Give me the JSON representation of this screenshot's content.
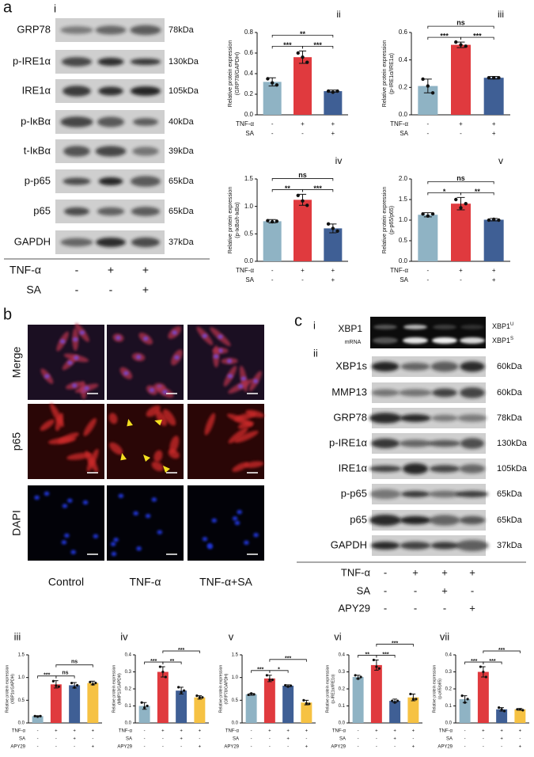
{
  "panel_labels": [
    "a",
    "b",
    "c"
  ],
  "blot_a": {
    "label": "i",
    "rows": [
      {
        "name": "GRP78",
        "size": "78kDa"
      },
      {
        "name": "p-IRE1α",
        "size": "130kDa"
      },
      {
        "name": "IRE1α",
        "size": "105kDa"
      },
      {
        "name": "p-IκBα",
        "size": "40kDa"
      },
      {
        "name": "t-IκBα",
        "size": "39kDa"
      },
      {
        "name": "p-p65",
        "size": "65kDa"
      },
      {
        "name": "p65",
        "size": "65kDa"
      },
      {
        "name": "GAPDH",
        "size": "37kDa"
      }
    ],
    "conditions": [
      {
        "name": "TNF-α",
        "marks": [
          "-",
          "+",
          "+"
        ]
      },
      {
        "name": "SA",
        "marks": [
          "-",
          "-",
          "+"
        ]
      }
    ]
  },
  "micro_b": {
    "rows": [
      "Merge",
      "p65",
      "DAPI"
    ],
    "columns": [
      "Control",
      "TNF-α",
      "TNF-α+SA"
    ]
  },
  "blot_c": {
    "labels": [
      "i",
      "ii"
    ],
    "xbp1": {
      "name": "XBP1",
      "sub": "mRNA",
      "bands": [
        {
          "text": "XBP1",
          "sup": "U"
        },
        {
          "text": "XBP1",
          "sup": "S"
        }
      ]
    },
    "rows": [
      {
        "name": "XBP1s",
        "size": "60kDa"
      },
      {
        "name": "MMP13",
        "size": "60kDa"
      },
      {
        "name": "GRP78",
        "size": "78kDa"
      },
      {
        "name": "p-IRE1α",
        "size": "130kDa"
      },
      {
        "name": "IRE1α",
        "size": "105kDa"
      },
      {
        "name": "p-p65",
        "size": "65kDa"
      },
      {
        "name": "p65",
        "size": "65kDa"
      },
      {
        "name": "GAPDH",
        "size": "37kDa"
      }
    ],
    "conditions": [
      {
        "name": "TNF-α",
        "marks": [
          "-",
          "+",
          "+",
          "+"
        ]
      },
      {
        "name": "SA",
        "marks": [
          "-",
          "-",
          "+",
          "-"
        ]
      },
      {
        "name": "APY29",
        "marks": [
          "-",
          "-",
          "-",
          "+"
        ]
      }
    ]
  },
  "chart_data": [
    {
      "type": "bar",
      "label": "ii",
      "ylabel": [
        "Relative protein expression",
        "(GRP78/GAPDH)"
      ],
      "values": [
        0.32,
        0.56,
        0.23
      ],
      "errors": [
        0.04,
        0.06,
        0.01
      ],
      "points": [
        [
          0.35,
          0.31,
          0.29
        ],
        [
          0.6,
          0.56,
          0.51
        ],
        [
          0.23,
          0.22,
          0.23
        ]
      ],
      "colors": [
        "#8fb3c4",
        "#e03a3e",
        "#3f5f95"
      ],
      "ylim": [
        0,
        0.8
      ],
      "yticks": [
        {
          "value": 0,
          "label": "0.0"
        },
        0.2,
        0.4,
        0.6,
        0.8
      ],
      "conditions": [
        {
          "name": "TNF-α",
          "marks": [
            "-",
            "+",
            "+"
          ]
        },
        {
          "name": "SA",
          "marks": [
            "-",
            "-",
            "+"
          ]
        }
      ],
      "significance": [
        {
          "bars": [
            0,
            1
          ],
          "label": "***"
        },
        {
          "bars": [
            1,
            2
          ],
          "label": "***"
        },
        {
          "bars": [
            0,
            2
          ],
          "label": "**"
        }
      ]
    },
    {
      "type": "bar",
      "label": "iii",
      "ylabel": [
        "Relative protein expression",
        "(p-IRE1α/IRE1α)"
      ],
      "values": [
        0.21,
        0.51,
        0.27
      ],
      "errors": [
        0.05,
        0.02,
        0.01
      ],
      "points": [
        [
          0.26,
          0.21,
          0.16
        ],
        [
          0.53,
          0.51,
          0.5
        ],
        [
          0.27,
          0.27,
          0.27
        ]
      ],
      "colors": [
        "#8fb3c4",
        "#e03a3e",
        "#3f5f95"
      ],
      "ylim": [
        0,
        0.6
      ],
      "yticks": [
        {
          "value": 0,
          "label": "0.0"
        },
        0.2,
        0.4,
        0.6
      ],
      "conditions": [
        {
          "name": "TNF-α",
          "marks": [
            "-",
            "+",
            "+"
          ]
        },
        {
          "name": "SA",
          "marks": [
            "-",
            "-",
            "+"
          ]
        }
      ],
      "significance": [
        {
          "bars": [
            0,
            1
          ],
          "label": "***"
        },
        {
          "bars": [
            1,
            2
          ],
          "label": "***"
        },
        {
          "bars": [
            0,
            2
          ],
          "label": "ns"
        }
      ]
    },
    {
      "type": "bar",
      "label": "iv",
      "ylabel": [
        "Relative protein expression",
        "(p-IκBα/t-IκBα)"
      ],
      "values": [
        0.73,
        1.12,
        0.6
      ],
      "errors": [
        0.03,
        0.1,
        0.08
      ],
      "points": [
        [
          0.74,
          0.72,
          0.73
        ],
        [
          1.2,
          1.1,
          1.02
        ],
        [
          0.68,
          0.6,
          0.55
        ]
      ],
      "colors": [
        "#8fb3c4",
        "#e03a3e",
        "#3f5f95"
      ],
      "ylim": [
        0,
        1.5
      ],
      "yticks": [
        {
          "value": 0,
          "label": "0.0"
        },
        0.5,
        {
          "value": 1,
          "label": "1.0"
        },
        1.5
      ],
      "conditions": [
        {
          "name": "TNF-α",
          "marks": [
            "-",
            "+",
            "+"
          ]
        },
        {
          "name": "SA",
          "marks": [
            "-",
            "-",
            "+"
          ]
        }
      ],
      "significance": [
        {
          "bars": [
            0,
            1
          ],
          "label": "**"
        },
        {
          "bars": [
            1,
            2
          ],
          "label": "***"
        },
        {
          "bars": [
            0,
            2
          ],
          "label": "ns"
        }
      ]
    },
    {
      "type": "bar",
      "label": "v",
      "ylabel": [
        "Relative protein expression",
        "(p-p65/p65)"
      ],
      "values": [
        1.13,
        1.4,
        1.01
      ],
      "errors": [
        0.05,
        0.15,
        0.03
      ],
      "points": [
        [
          1.15,
          1.1,
          1.15
        ],
        [
          1.5,
          1.3,
          1.4
        ],
        [
          1.0,
          1.02,
          1.0
        ]
      ],
      "colors": [
        "#8fb3c4",
        "#e03a3e",
        "#3f5f95"
      ],
      "ylim": [
        0,
        2
      ],
      "yticks": [
        {
          "value": 0,
          "label": "0.0"
        },
        0.5,
        {
          "value": 1,
          "label": "1.0"
        },
        1.5,
        {
          "value": 2,
          "label": "2.0"
        }
      ],
      "conditions": [
        {
          "name": "TNF-α",
          "marks": [
            "-",
            "+",
            "+"
          ]
        },
        {
          "name": "SA",
          "marks": [
            "-",
            "-",
            "+"
          ]
        }
      ],
      "significance": [
        {
          "bars": [
            0,
            1
          ],
          "label": "*"
        },
        {
          "bars": [
            1,
            2
          ],
          "label": "**"
        },
        {
          "bars": [
            0,
            2
          ],
          "label": "ns"
        }
      ]
    },
    {
      "type": "bar",
      "label": "iii",
      "ylabel": [
        "Relative protein expression",
        "(XBP1s/GAPDH)"
      ],
      "values": [
        0.15,
        0.85,
        0.83,
        0.88
      ],
      "errors": [
        0.01,
        0.08,
        0.06,
        0.04
      ],
      "points": [
        [
          0.15,
          0.14,
          0.15
        ],
        [
          0.92,
          0.82,
          0.8
        ],
        [
          0.88,
          0.78,
          0.83
        ],
        [
          0.9,
          0.85,
          0.88
        ]
      ],
      "colors": [
        "#8fb3c4",
        "#e03a3e",
        "#3f5f95",
        "#f6c243"
      ],
      "ylim": [
        0,
        1.5
      ],
      "yticks": [
        {
          "value": 0,
          "label": "0.0"
        },
        0.5,
        {
          "value": 1,
          "label": "1.0"
        },
        1.5
      ],
      "conditions": [
        {
          "name": "TNF-α",
          "marks": [
            "-",
            "+",
            "+",
            "+"
          ]
        },
        {
          "name": "SA",
          "marks": [
            "-",
            "-",
            "+",
            "-"
          ]
        },
        {
          "name": "APY29",
          "marks": [
            "-",
            "-",
            "-",
            "+"
          ]
        }
      ],
      "significance": [
        {
          "bars": [
            0,
            1
          ],
          "label": "***"
        },
        {
          "bars": [
            1,
            2
          ],
          "label": "ns"
        },
        {
          "bars": [
            1,
            3
          ],
          "label": "ns"
        }
      ]
    },
    {
      "type": "bar",
      "label": "iv",
      "ylabel": [
        "Relative protein expression",
        "(MMP13/GAPDH)"
      ],
      "values": [
        0.1,
        0.3,
        0.19,
        0.15
      ],
      "errors": [
        0.02,
        0.03,
        0.02,
        0.01
      ],
      "points": [
        [
          0.12,
          0.09,
          0.1
        ],
        [
          0.33,
          0.3,
          0.27
        ],
        [
          0.21,
          0.18,
          0.19
        ],
        [
          0.16,
          0.15,
          0.15
        ]
      ],
      "colors": [
        "#8fb3c4",
        "#e03a3e",
        "#3f5f95",
        "#f6c243"
      ],
      "ylim": [
        0,
        0.4
      ],
      "yticks": [
        {
          "value": 0,
          "label": "0.0"
        },
        0.1,
        0.2,
        0.3,
        0.4
      ],
      "conditions": [
        {
          "name": "TNF-α",
          "marks": [
            "-",
            "+",
            "+",
            "+"
          ]
        },
        {
          "name": "SA",
          "marks": [
            "-",
            "-",
            "+",
            "-"
          ]
        },
        {
          "name": "APY29",
          "marks": [
            "-",
            "-",
            "-",
            "+"
          ]
        }
      ],
      "significance": [
        {
          "bars": [
            0,
            1
          ],
          "label": "***"
        },
        {
          "bars": [
            1,
            2
          ],
          "label": "**"
        },
        {
          "bars": [
            1,
            3
          ],
          "label": "***"
        }
      ]
    },
    {
      "type": "bar",
      "label": "v",
      "ylabel": [
        "Relative protein expression",
        "(GRP78/GAPDH)"
      ],
      "values": [
        0.63,
        0.98,
        0.82,
        0.45
      ],
      "errors": [
        0.02,
        0.07,
        0.02,
        0.05
      ],
      "points": [
        [
          0.62,
          0.65,
          0.63
        ],
        [
          1.05,
          0.95,
          0.95
        ],
        [
          0.83,
          0.8,
          0.82
        ],
        [
          0.5,
          0.43,
          0.42
        ]
      ],
      "colors": [
        "#8fb3c4",
        "#e03a3e",
        "#3f5f95",
        "#f6c243"
      ],
      "ylim": [
        0,
        1.5
      ],
      "yticks": [
        {
          "value": 0,
          "label": "0.0"
        },
        0.5,
        {
          "value": 1,
          "label": "1.0"
        },
        1.5
      ],
      "conditions": [
        {
          "name": "TNF-α",
          "marks": [
            "-",
            "+",
            "+",
            "+"
          ]
        },
        {
          "name": "SA",
          "marks": [
            "-",
            "-",
            "+",
            "-"
          ]
        },
        {
          "name": "APY29",
          "marks": [
            "-",
            "-",
            "-",
            "+"
          ]
        }
      ],
      "significance": [
        {
          "bars": [
            0,
            1
          ],
          "label": "***"
        },
        {
          "bars": [
            1,
            2
          ],
          "label": "*"
        },
        {
          "bars": [
            1,
            3
          ],
          "label": "***"
        }
      ]
    },
    {
      "type": "bar",
      "label": "vi",
      "ylabel": [
        "Relative protein expression",
        "(p-IRE1α/IRE1α)"
      ],
      "values": [
        0.27,
        0.34,
        0.13,
        0.15
      ],
      "errors": [
        0.01,
        0.03,
        0.01,
        0.02
      ],
      "points": [
        [
          0.28,
          0.26,
          0.27
        ],
        [
          0.37,
          0.33,
          0.32
        ],
        [
          0.13,
          0.12,
          0.13
        ],
        [
          0.17,
          0.14,
          0.14
        ]
      ],
      "colors": [
        "#8fb3c4",
        "#e03a3e",
        "#3f5f95",
        "#f6c243"
      ],
      "ylim": [
        0,
        0.4
      ],
      "yticks": [
        {
          "value": 0,
          "label": "0.0"
        },
        0.1,
        0.2,
        0.3,
        0.4
      ],
      "conditions": [
        {
          "name": "TNF-α",
          "marks": [
            "-",
            "+",
            "+",
            "+"
          ]
        },
        {
          "name": "SA",
          "marks": [
            "-",
            "-",
            "+",
            "-"
          ]
        },
        {
          "name": "APY29",
          "marks": [
            "-",
            "-",
            "-",
            "+"
          ]
        }
      ],
      "significance": [
        {
          "bars": [
            0,
            1
          ],
          "label": "**"
        },
        {
          "bars": [
            1,
            2
          ],
          "label": "***"
        },
        {
          "bars": [
            1,
            3
          ],
          "label": "***"
        }
      ]
    },
    {
      "type": "bar",
      "label": "vii",
      "ylabel": [
        "Relative protein expression",
        "(p-p65/p65)"
      ],
      "values": [
        0.14,
        0.3,
        0.08,
        0.08
      ],
      "errors": [
        0.02,
        0.03,
        0.01,
        0.005
      ],
      "points": [
        [
          0.16,
          0.12,
          0.14
        ],
        [
          0.33,
          0.3,
          0.27
        ],
        [
          0.09,
          0.08,
          0.07
        ],
        [
          0.08,
          0.08,
          0.075
        ]
      ],
      "colors": [
        "#8fb3c4",
        "#e03a3e",
        "#3f5f95",
        "#f6c243"
      ],
      "ylim": [
        0,
        0.4
      ],
      "yticks": [
        {
          "value": 0,
          "label": "0.0"
        },
        0.1,
        0.2,
        0.3,
        0.4
      ],
      "conditions": [
        {
          "name": "TNF-α",
          "marks": [
            "-",
            "+",
            "+",
            "+"
          ]
        },
        {
          "name": "SA",
          "marks": [
            "-",
            "-",
            "+",
            "-"
          ]
        },
        {
          "name": "APY29",
          "marks": [
            "-",
            "-",
            "-",
            "+"
          ]
        }
      ],
      "significance": [
        {
          "bars": [
            0,
            1
          ],
          "label": "***"
        },
        {
          "bars": [
            1,
            2
          ],
          "label": "***"
        },
        {
          "bars": [
            1,
            3
          ],
          "label": "***"
        }
      ]
    }
  ]
}
